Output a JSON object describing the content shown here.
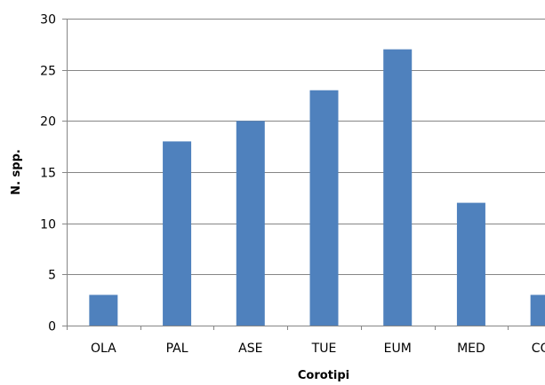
{
  "chart_data": {
    "type": "bar",
    "categories": [
      "OLA",
      "PAL",
      "ASE",
      "TUE",
      "EUM",
      "MED",
      "COS"
    ],
    "values": [
      3,
      18,
      20,
      23,
      27,
      12,
      3
    ],
    "title": "",
    "xlabel": "Corotipi",
    "ylabel": "N. spp.",
    "ylim": [
      0,
      30
    ],
    "yticks": [
      "0",
      "5",
      "10",
      "15",
      "20",
      "25",
      "30"
    ],
    "grid": true,
    "legend": "none",
    "colors": {
      "bar": "#4F81BD",
      "grid": "#868686",
      "axis": "#868686"
    }
  }
}
